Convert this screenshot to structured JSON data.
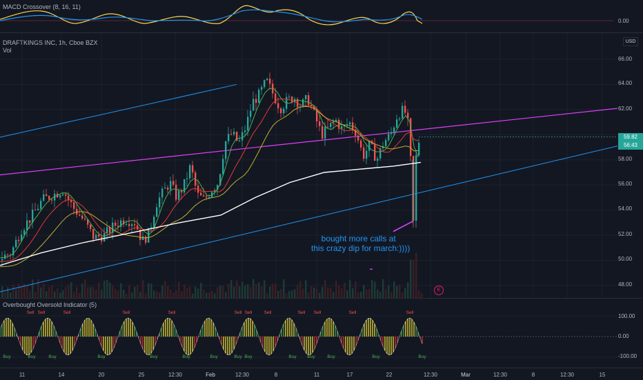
{
  "macd_pane": {
    "title": "MACD Crossover (8, 16, 11)",
    "scale": [
      "0.00"
    ]
  },
  "main_pane": {
    "symbol_line": "DRAFTKINGS INC, 1h, Cboe BZX",
    "volume_label": "Vol",
    "currency": "USD",
    "price_scale": [
      "66.00",
      "64.00",
      "62.00",
      "60.00",
      "58.00",
      "56.00",
      "54.00",
      "52.00",
      "50.00",
      "48.00"
    ],
    "last_price": "59.82",
    "countdown": "56:43",
    "annotation": "bought more calls at\n this crazy dip for march:))))",
    "earnings_marker": "E"
  },
  "oscillator_pane": {
    "title": "Overbought Oversold Indicator (5)",
    "scale": [
      "100.00",
      "0.00",
      "-100.00"
    ],
    "sell_label": "Sell",
    "buy_label": "Buy"
  },
  "time_axis": [
    "11",
    "14",
    "20",
    "25",
    "12:30",
    "Feb",
    "12:30",
    "8",
    "11",
    "17",
    "22",
    "12:30",
    "Mar",
    "12:30",
    "8",
    "12:30",
    "15"
  ],
  "colors": {
    "background": "#131722",
    "up_candle": "#26a69a",
    "down_candle": "#ef5350",
    "trend_blue": "#2196f3",
    "trend_magenta": "#e040fb",
    "sma_white": "#ffffff",
    "ma_green": "#4caf50",
    "ma_red": "#e53935",
    "ma_olive": "#c0b030",
    "macd_yellow": "#ffd54f",
    "signal_blue": "#2196f3",
    "last_price_green": "#26a69a"
  },
  "chart_data": [
    {
      "type": "line",
      "title": "MACD Crossover (8, 16, 11)",
      "note": "oscillator lines around zero"
    },
    {
      "type": "candlestick",
      "title": "DRAFTKINGS INC, 1h, Cboe BZX",
      "ylim": [
        47,
        67
      ],
      "last_close": 59.82,
      "key_closes": [
        {
          "x": "11",
          "y": 49.8
        },
        {
          "x": "14",
          "y": 55.0
        },
        {
          "x": "20",
          "y": 52.2
        },
        {
          "x": "25",
          "y": 53.0
        },
        {
          "x": "12:30",
          "y": 55.5
        },
        {
          "x": "Feb",
          "y": 59.5
        },
        {
          "x": "12:30",
          "y": 62.5
        },
        {
          "x": "8",
          "y": 63.0
        },
        {
          "x": "11",
          "y": 61.5
        },
        {
          "x": "17",
          "y": 58.5
        },
        {
          "x": "22",
          "y": 62.0
        },
        {
          "x": "22",
          "y": 53.0
        },
        {
          "x": "22",
          "y": 59.82
        }
      ]
    },
    {
      "type": "bar",
      "title": "Overbought Oversold Indicator (5)",
      "ylim": [
        -100,
        100
      ]
    }
  ]
}
